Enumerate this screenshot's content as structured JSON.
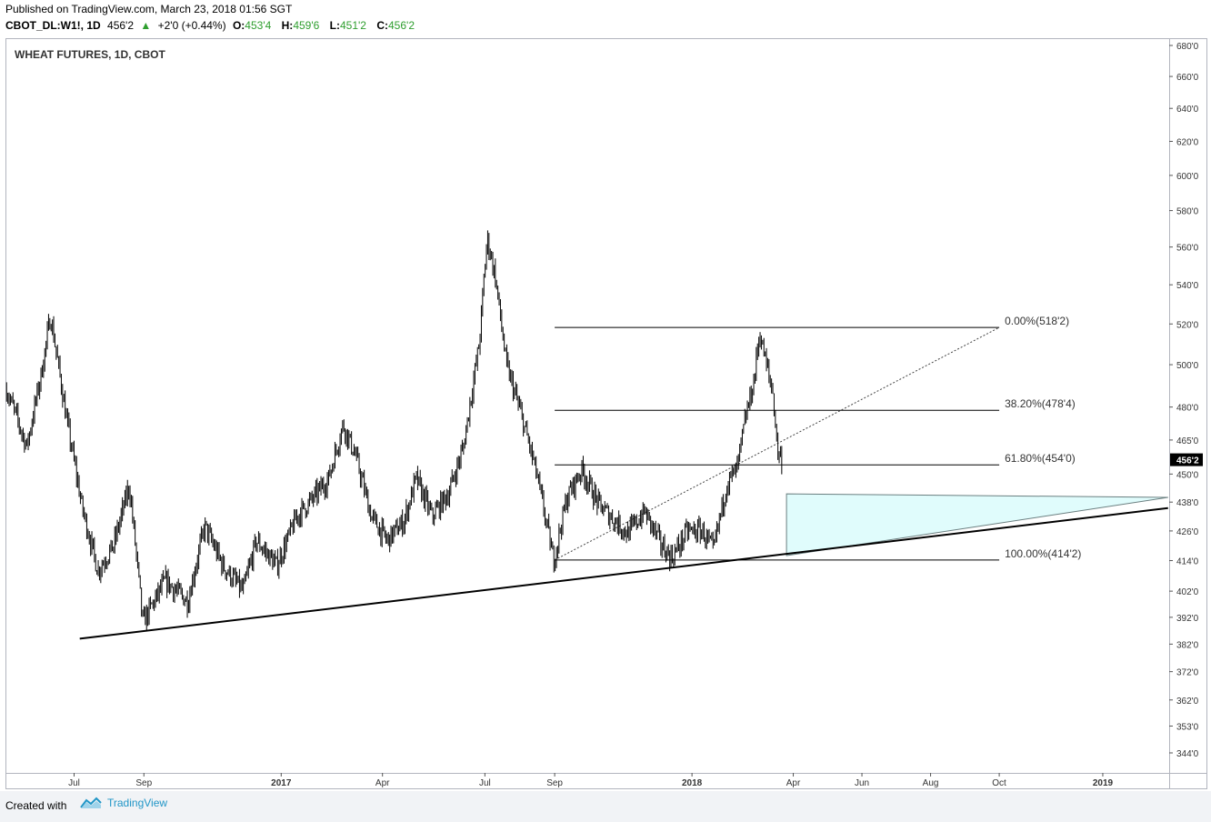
{
  "header": {
    "published": "Published on TradingView.com, March 23, 2018 01:56 SGT",
    "symbol": "CBOT_DL:W1!, 1D",
    "last": "456'2",
    "change": "+2'0 (+0.44%)",
    "open_label": "O:",
    "open": "453'4",
    "high_label": "H:",
    "high": "459'6",
    "low_label": "L:",
    "low": "451'2",
    "close_label": "C:",
    "close": "456'2"
  },
  "chart_data": {
    "type": "candlestick",
    "title": "WHEAT FUTURES, 1D, CBOT",
    "x_tick_labels": [
      "Jul",
      "Sep",
      "2017",
      "Apr",
      "Jul",
      "Sep",
      "2018",
      "Apr",
      "Jun",
      "Aug",
      "Oct",
      "2019"
    ],
    "y_tick_labels": [
      "680'0",
      "660'0",
      "640'0",
      "620'0",
      "600'0",
      "580'0",
      "560'0",
      "540'0",
      "520'0",
      "500'0",
      "480'0",
      "465'0",
      "456'2",
      "450'0",
      "438'0",
      "426'0",
      "414'0",
      "402'0",
      "392'0",
      "382'0",
      "372'0",
      "362'0",
      "353'0",
      "344'0"
    ],
    "y_scale": "log",
    "last_price_label": "456'2",
    "price_path": [
      [
        "2016-05-02",
        488
      ],
      [
        "2016-05-20",
        462
      ],
      [
        "2016-06-02",
        496
      ],
      [
        "2016-06-10",
        524
      ],
      [
        "2016-06-24",
        475
      ],
      [
        "2016-07-08",
        436
      ],
      [
        "2016-07-22",
        410
      ],
      [
        "2016-08-05",
        420
      ],
      [
        "2016-08-19",
        445
      ],
      [
        "2016-08-31",
        390
      ],
      [
        "2016-09-20",
        406
      ],
      [
        "2016-10-10",
        398
      ],
      [
        "2016-10-25",
        428
      ],
      [
        "2016-11-10",
        412
      ],
      [
        "2016-11-28",
        402
      ],
      [
        "2016-12-10",
        422
      ],
      [
        "2016-12-28",
        412
      ],
      [
        "2017-01-15",
        432
      ],
      [
        "2017-01-30",
        440
      ],
      [
        "2017-02-12",
        448
      ],
      [
        "2017-02-25",
        472
      ],
      [
        "2017-03-08",
        458
      ],
      [
        "2017-03-22",
        432
      ],
      [
        "2017-04-05",
        422
      ],
      [
        "2017-04-20",
        430
      ],
      [
        "2017-05-01",
        448
      ],
      [
        "2017-05-15",
        432
      ],
      [
        "2017-05-30",
        442
      ],
      [
        "2017-06-12",
        462
      ],
      [
        "2017-06-26",
        510
      ],
      [
        "2017-07-03",
        565
      ],
      [
        "2017-07-10",
        545
      ],
      [
        "2017-07-20",
        500
      ],
      [
        "2017-08-03",
        475
      ],
      [
        "2017-08-15",
        452
      ],
      [
        "2017-08-31",
        414
      ],
      [
        "2017-09-12",
        440
      ],
      [
        "2017-09-25",
        452
      ],
      [
        "2017-10-10",
        437
      ],
      [
        "2017-10-25",
        430
      ],
      [
        "2017-11-05",
        425
      ],
      [
        "2017-11-20",
        434
      ],
      [
        "2017-12-05",
        420
      ],
      [
        "2017-12-14",
        415
      ],
      [
        "2017-12-28",
        426
      ],
      [
        "2018-01-10",
        426
      ],
      [
        "2018-01-20",
        418
      ],
      [
        "2018-02-01",
        446
      ],
      [
        "2018-02-10",
        452
      ],
      [
        "2018-02-18",
        476
      ],
      [
        "2018-02-25",
        492
      ],
      [
        "2018-03-02",
        516
      ],
      [
        "2018-03-08",
        500
      ],
      [
        "2018-03-14",
        486
      ],
      [
        "2018-03-18",
        460
      ],
      [
        "2018-03-22",
        456.25
      ]
    ],
    "fibonacci": {
      "levels": [
        {
          "label": "0.00%(518'2)",
          "price": 518.25
        },
        {
          "label": "38.20%(478'4)",
          "price": 478.5
        },
        {
          "label": "61.80%(454'0)",
          "price": 454.0
        },
        {
          "label": "100.00%(414'2)",
          "price": 414.25
        }
      ],
      "start_date": "2017-09-01",
      "end_date": "2018-10-01"
    },
    "trendline_diagonal": {
      "from": [
        "2017-09-01",
        414.25
      ],
      "to": [
        "2018-10-01",
        518.25
      ]
    },
    "support_line": {
      "from": [
        "2016-07-06",
        384
      ],
      "to": [
        "2019-02-28",
        435.5
      ]
    },
    "projection_triangle": {
      "points": [
        [
          "2018-03-26",
          441.5
        ],
        [
          "2019-02-28",
          440
        ],
        [
          "2018-03-26",
          416
        ]
      ],
      "color": "#e0fcfc"
    },
    "colors": {
      "candle": "#000000",
      "price_tag": "#000000",
      "brand": "#2196c7"
    }
  },
  "footer": {
    "created": "Created with",
    "brand": "TradingView"
  }
}
